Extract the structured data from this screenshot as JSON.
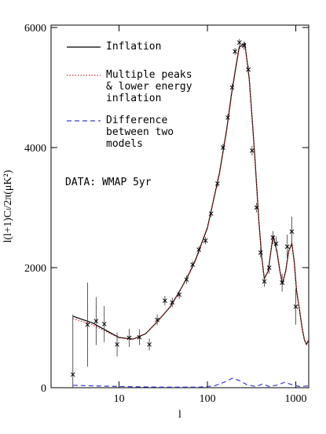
{
  "chart_data": {
    "type": "line",
    "xlabel": "l",
    "ylabel": "l(l+1)Cₗ/2π(μK²)",
    "xlog": true,
    "xlim": [
      1.7,
      1400
    ],
    "ylim": [
      0,
      6040
    ],
    "xticks": [
      10,
      100,
      1000
    ],
    "yticks": [
      0,
      2000,
      4000,
      6000
    ],
    "annotation": "DATA: WMAP 5yr",
    "series": [
      {
        "name": "Inflation",
        "color": "#000000",
        "dash": "solid",
        "x": [
          3,
          5,
          7,
          10,
          14.5,
          20,
          27,
          38,
          49,
          62,
          74,
          100,
          137,
          165,
          187,
          210,
          229,
          265,
          297,
          320,
          344,
          381,
          410,
          440,
          488,
          552,
          611,
          660,
          705,
          770,
          830,
          902,
          960,
          1019,
          1100,
          1176,
          1250,
          1320,
          1400
        ],
        "values": [
          1190,
          1080,
          960,
          837,
          810,
          900,
          1098,
          1350,
          1621,
          1900,
          2144,
          2667,
          3582,
          4300,
          4889,
          5350,
          5673,
          5739,
          5150,
          4500,
          3843,
          2797,
          2200,
          1817,
          1948,
          2536,
          2275,
          1950,
          1725,
          1950,
          2275,
          2405,
          2100,
          1621,
          1300,
          1000,
          800,
          720,
          800
        ]
      },
      {
        "name": "Multiple peaks & lower energy inflation",
        "color": "#d0302a",
        "dash": "dotted",
        "x": [
          3,
          5,
          7,
          10,
          14.5,
          20,
          27,
          38,
          49,
          62,
          74,
          100,
          137,
          165,
          187,
          210,
          229,
          265,
          297,
          320,
          344,
          381,
          410,
          440,
          488,
          552,
          611,
          660,
          705,
          770,
          830,
          902,
          960,
          1019,
          1100,
          1176,
          1250,
          1320,
          1400
        ],
        "values": [
          1150,
          1050,
          940,
          830,
          805,
          895,
          1095,
          1345,
          1615,
          1890,
          2130,
          2650,
          3560,
          4270,
          4850,
          5320,
          5650,
          5720,
          5140,
          4490,
          3830,
          2790,
          2190,
          1810,
          1940,
          2520,
          2265,
          1945,
          1720,
          1945,
          2265,
          2395,
          2095,
          1615,
          1295,
          995,
          795,
          715,
          795
        ]
      },
      {
        "name": "Difference between two models",
        "color": "#3a3ad8",
        "dash": "dashed",
        "x": [
          3,
          10,
          30,
          80,
          120,
          160,
          190,
          230,
          280,
          350,
          420,
          500,
          600,
          750,
          900,
          1100,
          1400
        ],
        "values": [
          40,
          20,
          10,
          10,
          30,
          100,
          157,
          120,
          50,
          20,
          60,
          20,
          40,
          90,
          50,
          20,
          30
        ]
      }
    ],
    "data": {
      "x": [
        3,
        4.4,
        5.5,
        6.8,
        9.5,
        13,
        17,
        22,
        27,
        33,
        40,
        48,
        58,
        68,
        80,
        95,
        110,
        130,
        150,
        170,
        190,
        205,
        230,
        260,
        290,
        320,
        360,
        400,
        440,
        500,
        550,
        600,
        700,
        800,
        900,
        1000
      ],
      "values": [
        220,
        1050,
        1110,
        1060,
        720,
        830,
        840,
        720,
        1130,
        1450,
        1420,
        1550,
        1800,
        2050,
        2300,
        2450,
        2900,
        3400,
        4000,
        4500,
        5000,
        5600,
        5750,
        5700,
        5300,
        3950,
        3000,
        2250,
        1770,
        2000,
        2500,
        2400,
        1750,
        2350,
        2600,
        1350
      ],
      "errors": [
        1000,
        700,
        400,
        300,
        200,
        150,
        130,
        100,
        90,
        80,
        80,
        70,
        70,
        60,
        60,
        60,
        60,
        60,
        60,
        60,
        60,
        60,
        60,
        70,
        70,
        80,
        80,
        80,
        90,
        100,
        110,
        120,
        150,
        200,
        250,
        300
      ]
    }
  }
}
